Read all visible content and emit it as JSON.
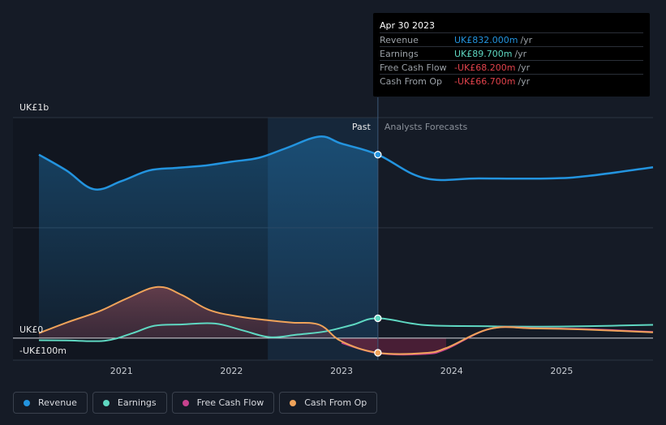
{
  "colors": {
    "revenue": "#2394df",
    "earnings": "#5fd8c2",
    "fcf": "#c7428e",
    "cfo": "#f0a35a"
  },
  "tooltip": {
    "date": "Apr 30 2023",
    "rows": [
      {
        "label": "Revenue",
        "value": "UK£832.000m",
        "unit": "/yr",
        "color": "#2394df"
      },
      {
        "label": "Earnings",
        "value": "UK£89.700m",
        "unit": "/yr",
        "color": "#5fd8c2"
      },
      {
        "label": "Free Cash Flow",
        "value": "-UK£68.200m",
        "unit": "/yr",
        "color": "#e0424b"
      },
      {
        "label": "Cash From Op",
        "value": "-UK£66.700m",
        "unit": "/yr",
        "color": "#e0424b"
      }
    ]
  },
  "legend": [
    {
      "label": "Revenue",
      "color": "#2394df"
    },
    {
      "label": "Earnings",
      "color": "#5fd8c2"
    },
    {
      "label": "Free Cash Flow",
      "color": "#c7428e"
    },
    {
      "label": "Cash From Op",
      "color": "#f0a35a"
    }
  ],
  "chart_data": {
    "type": "line",
    "y_unit": "UK£m",
    "ylim": [
      -100,
      1000
    ],
    "y_tick_labels": [
      "UK£1b",
      "UK£0",
      "-UK£100m"
    ],
    "x_tick_labels": [
      "2021",
      "2022",
      "2023",
      "2024",
      "2025"
    ],
    "xlim": [
      2020.25,
      2025.83
    ],
    "past_label": "Past",
    "forecast_label": "Analysts Forecasts",
    "forecast_start": 2023.33,
    "shade_start": 2022.33,
    "series": [
      {
        "name": "Revenue",
        "key": "revenue",
        "points": [
          [
            2020.25,
            832
          ],
          [
            2020.5,
            760
          ],
          [
            2020.75,
            675
          ],
          [
            2021.0,
            712
          ],
          [
            2021.25,
            760
          ],
          [
            2021.5,
            772
          ],
          [
            2021.75,
            782
          ],
          [
            2022.0,
            800
          ],
          [
            2022.25,
            818
          ],
          [
            2022.5,
            862
          ],
          [
            2022.8,
            914
          ],
          [
            2023.0,
            882
          ],
          [
            2023.33,
            832
          ],
          [
            2023.75,
            726
          ],
          [
            2024.25,
            724
          ],
          [
            2024.9,
            724
          ],
          [
            2025.25,
            736
          ],
          [
            2025.83,
            775
          ]
        ]
      },
      {
        "name": "Earnings",
        "key": "earnings",
        "points": [
          [
            2020.25,
            -10
          ],
          [
            2020.5,
            -11
          ],
          [
            2020.85,
            -12
          ],
          [
            2021.1,
            22
          ],
          [
            2021.3,
            56
          ],
          [
            2021.55,
            62
          ],
          [
            2021.85,
            66
          ],
          [
            2022.1,
            35
          ],
          [
            2022.35,
            4
          ],
          [
            2022.6,
            16
          ],
          [
            2022.85,
            30
          ],
          [
            2023.1,
            60
          ],
          [
            2023.33,
            89.7
          ],
          [
            2023.75,
            59
          ],
          [
            2024.25,
            54
          ],
          [
            2024.75,
            52
          ],
          [
            2025.25,
            54
          ],
          [
            2025.83,
            60
          ]
        ]
      },
      {
        "name": "Free Cash Flow",
        "key": "fcf",
        "points": [
          [
            2023.0,
            -22
          ],
          [
            2023.33,
            -68.2
          ],
          [
            2023.75,
            -72
          ],
          [
            2023.95,
            -50
          ],
          [
            2024.35,
            42
          ],
          [
            2024.75,
            45
          ],
          [
            2025.25,
            40
          ],
          [
            2025.83,
            28
          ]
        ]
      },
      {
        "name": "Cash From Op",
        "key": "cfo",
        "points": [
          [
            2020.25,
            22
          ],
          [
            2020.5,
            70
          ],
          [
            2020.8,
            122
          ],
          [
            2021.05,
            180
          ],
          [
            2021.33,
            232
          ],
          [
            2021.55,
            195
          ],
          [
            2021.8,
            127
          ],
          [
            2022.1,
            95
          ],
          [
            2022.35,
            80
          ],
          [
            2022.55,
            70
          ],
          [
            2022.8,
            60
          ],
          [
            2023.0,
            -15
          ],
          [
            2023.33,
            -66.7
          ],
          [
            2023.75,
            -68
          ],
          [
            2023.95,
            -45
          ],
          [
            2024.35,
            42
          ],
          [
            2024.75,
            44
          ],
          [
            2025.25,
            38
          ],
          [
            2025.83,
            26
          ]
        ]
      }
    ],
    "markers": [
      {
        "series": "revenue",
        "x": 2023.33,
        "y": 832
      },
      {
        "series": "earnings",
        "x": 2023.33,
        "y": 89.7
      },
      {
        "series": "cfo",
        "x": 2023.33,
        "y": -66.7
      }
    ]
  }
}
